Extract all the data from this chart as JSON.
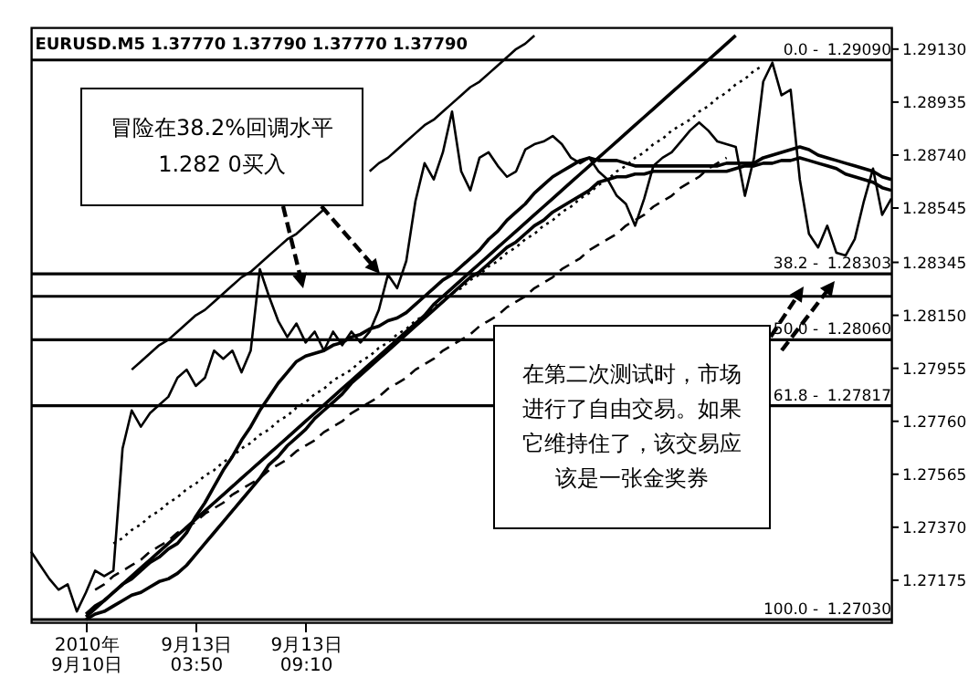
{
  "chart_data": {
    "type": "line",
    "title": "EURUSD.M5  1.37770 1.37790 1.37770 1.37790",
    "categories": [
      null,
      null,
      null,
      null,
      null,
      null,
      "2010年 9月10日",
      null,
      null,
      null,
      null,
      null,
      null,
      null,
      null,
      null,
      null,
      null,
      "9月13日 03:50",
      null,
      null,
      null,
      null,
      null,
      null,
      null,
      null,
      null,
      null,
      null,
      "9月13日 09:10",
      null,
      null,
      null,
      null,
      null,
      null,
      null,
      null,
      null,
      null,
      null,
      null,
      null,
      null,
      null,
      null,
      null,
      null,
      null,
      null,
      null,
      null,
      null,
      null,
      null,
      null,
      null,
      null,
      null,
      null,
      null,
      null,
      null,
      null,
      null,
      null,
      null,
      null,
      null,
      null,
      null,
      null,
      null,
      null,
      null,
      null,
      null,
      null,
      null,
      null,
      null,
      null,
      null,
      null,
      null,
      null,
      null,
      null,
      null,
      null,
      null,
      null,
      null,
      null
    ],
    "series": [
      {
        "color": "#000000",
        "values": [
          1.2728,
          1.2723,
          1.2718,
          1.2714,
          1.2716,
          1.2706,
          1.2713,
          1.2721,
          1.2719,
          1.2721,
          1.2766,
          1.278,
          1.2774,
          1.2779,
          1.2782,
          1.2785,
          1.2792,
          1.2795,
          1.2789,
          1.2792,
          1.2802,
          1.2799,
          1.2802,
          1.2794,
          1.2802,
          1.2832,
          1.2822,
          1.2813,
          1.2807,
          1.2812,
          1.2805,
          1.2809,
          1.2802,
          1.2809,
          1.2804,
          1.2809,
          1.2805,
          1.2809,
          1.2817,
          1.283,
          1.2825,
          1.2835,
          1.2857,
          1.2871,
          1.2865,
          1.2875,
          1.289,
          1.2868,
          1.2861,
          1.2873,
          1.2875,
          1.287,
          1.2866,
          1.2868,
          1.2876,
          1.2878,
          1.2879,
          1.2881,
          1.2878,
          1.2873,
          1.2871,
          1.2873,
          1.2868,
          1.2865,
          1.2859,
          1.2856,
          1.2848,
          1.2858,
          1.287,
          1.2873,
          1.2875,
          1.2879,
          1.2883,
          1.2886,
          1.2883,
          1.2879,
          1.2878,
          1.2877,
          1.2859,
          1.2873,
          1.2901,
          1.2908,
          1.2896,
          1.2898,
          1.2865,
          1.2845,
          1.284,
          1.2848,
          1.2838,
          1.2837,
          1.2843,
          1.2857,
          1.2869,
          1.2852,
          1.2858
        ]
      },
      {
        "color": "#000000",
        "values": [
          null,
          null,
          null,
          null,
          null,
          null,
          1.2705,
          1.2708,
          1.271,
          1.2713,
          1.2716,
          1.2718,
          1.2721,
          1.2724,
          1.2726,
          1.2729,
          1.2731,
          1.2735,
          1.2741,
          1.2746,
          1.2752,
          1.2758,
          1.2763,
          1.2769,
          1.2774,
          1.278,
          1.2785,
          1.279,
          1.2794,
          1.2798,
          1.28,
          1.2801,
          1.2802,
          1.2804,
          1.2805,
          1.2807,
          1.2808,
          1.281,
          1.2811,
          1.2813,
          1.2814,
          1.2816,
          1.2819,
          1.2822,
          1.2825,
          1.2828,
          1.283,
          1.2833,
          1.2836,
          1.2839,
          1.2843,
          1.2846,
          1.285,
          1.2853,
          1.2856,
          1.286,
          1.2863,
          1.2866,
          1.2868,
          1.287,
          1.2872,
          1.2873,
          1.2872,
          1.2872,
          1.2872,
          1.2871,
          1.287,
          1.287,
          1.287,
          1.287,
          1.287,
          1.287,
          1.287,
          1.287,
          1.287,
          1.287,
          1.2871,
          1.2871,
          1.2871,
          1.2871,
          1.2873,
          1.2874,
          1.2875,
          1.2876,
          1.2877,
          1.2876,
          1.2874,
          1.2873,
          1.2872,
          1.2871,
          1.287,
          1.2869,
          1.2868,
          1.2866,
          1.2865
        ]
      },
      {
        "color": "#000000",
        "values": [
          null,
          null,
          null,
          null,
          null,
          null,
          1.2703,
          1.2705,
          1.2706,
          1.2708,
          1.271,
          1.2712,
          1.2713,
          1.2715,
          1.2717,
          1.2718,
          1.272,
          1.2723,
          1.2727,
          1.2731,
          1.2735,
          1.2739,
          1.2743,
          1.2747,
          1.2751,
          1.2755,
          1.276,
          1.2763,
          1.2767,
          1.277,
          1.2773,
          1.2777,
          1.278,
          1.2783,
          1.2786,
          1.279,
          1.2793,
          1.2796,
          1.2799,
          1.2802,
          1.2805,
          1.2808,
          1.2811,
          1.2814,
          1.2817,
          1.282,
          1.2823,
          1.2826,
          1.2829,
          1.2831,
          1.2834,
          1.2837,
          1.284,
          1.2842,
          1.2845,
          1.2848,
          1.285,
          1.2853,
          1.2855,
          1.2857,
          1.2859,
          1.2861,
          1.2864,
          1.2865,
          1.2866,
          1.2866,
          1.2867,
          1.2867,
          1.2868,
          1.2868,
          1.2868,
          1.2868,
          1.2868,
          1.2868,
          1.2868,
          1.2868,
          1.2868,
          1.2869,
          1.287,
          1.287,
          1.2871,
          1.2871,
          1.2872,
          1.2872,
          1.2873,
          1.2872,
          1.2871,
          1.287,
          1.2869,
          1.2867,
          1.2866,
          1.2865,
          1.2864,
          1.2862,
          1.2861
        ]
      },
      {
        "color": "#000000",
        "values": [
          null,
          null,
          null,
          null,
          null,
          null,
          1.2704,
          1.2707,
          1.271,
          1.2713,
          1.2716,
          1.2719,
          1.2722,
          1.2725,
          1.2728,
          1.2731,
          1.2734,
          1.2737,
          1.274,
          1.2743,
          1.2746,
          1.2749,
          1.2752,
          1.2755,
          1.2758,
          1.2761,
          1.2764,
          1.2767,
          1.277,
          1.2773,
          1.2776,
          1.2779,
          1.2782,
          1.2785,
          1.2788,
          1.2791,
          1.2794,
          1.2797,
          1.28,
          1.2803,
          1.2806,
          1.2809,
          1.2812,
          1.2815,
          1.2819,
          1.2822,
          1.2825,
          1.2828,
          1.2831,
          1.2834,
          1.2837,
          1.284,
          1.2843,
          1.2846,
          1.2849,
          1.2852,
          1.2855,
          1.2858,
          1.2861,
          1.2864,
          1.2867,
          1.287,
          1.2873,
          1.2876,
          1.2879,
          1.2882,
          1.2885,
          1.2888,
          1.2891,
          1.2894,
          1.2897,
          1.29,
          1.2903,
          1.2906,
          1.2909,
          1.2912,
          1.2915,
          1.2918,
          null,
          null,
          null,
          null,
          null,
          null,
          null,
          null,
          null,
          null,
          null,
          null,
          null,
          null,
          null,
          null,
          null
        ]
      },
      {
        "color": "#000000",
        "values": [
          null,
          null,
          null,
          null,
          null,
          null,
          null,
          null,
          null,
          null,
          null,
          1.2795,
          1.2798,
          1.2801,
          1.2804,
          1.2806,
          1.2809,
          1.2812,
          1.2815,
          1.2817,
          1.282,
          1.2823,
          1.2826,
          1.2829,
          1.2831,
          1.2834,
          1.2837,
          1.284,
          1.2843,
          1.2845,
          1.2848,
          1.2851,
          1.2854,
          null,
          null,
          null,
          null,
          1.2868,
          1.2871,
          1.2873,
          1.2876,
          1.2879,
          1.2882,
          1.2885,
          1.2887,
          1.289,
          1.2893,
          1.2896,
          1.2899,
          1.2901,
          1.2904,
          1.2907,
          1.291,
          1.2913,
          1.2915,
          1.2918,
          null,
          null,
          null,
          null,
          null,
          null,
          null,
          null,
          null,
          null,
          null,
          null,
          null,
          null,
          null,
          null,
          null,
          null,
          null,
          null,
          null,
          null,
          null,
          null,
          null,
          null,
          null,
          null,
          null,
          null,
          null,
          null,
          null,
          null,
          null,
          null,
          null,
          null,
          null
        ]
      },
      {
        "color": "#000000",
        "line_style": "dotted",
        "values": [
          null,
          null,
          null,
          null,
          null,
          null,
          null,
          null,
          null,
          1.2731,
          1.2733,
          1.2736,
          1.2738,
          1.2741,
          1.2743,
          1.2746,
          1.2748,
          1.2751,
          1.2753,
          1.2756,
          1.2758,
          1.2761,
          1.2763,
          1.2766,
          1.2768,
          1.2771,
          1.2773,
          1.2776,
          1.2778,
          1.2781,
          1.2783,
          1.2786,
          1.2788,
          1.2791,
          1.2793,
          1.2795,
          1.2798,
          1.28,
          1.2803,
          1.2805,
          1.2808,
          1.281,
          1.2813,
          1.2815,
          1.2818,
          1.282,
          1.2823,
          1.2825,
          1.2828,
          1.283,
          1.2833,
          1.2835,
          1.2838,
          1.284,
          1.2843,
          1.2845,
          1.2848,
          1.285,
          1.2853,
          1.2855,
          1.2858,
          1.286,
          1.2863,
          1.2865,
          1.2868,
          1.287,
          1.2873,
          1.2875,
          1.2878,
          1.288,
          1.2883,
          1.2885,
          1.2887,
          1.289,
          1.2892,
          1.2895,
          1.2897,
          1.29,
          1.2902,
          1.2905,
          1.2907,
          null,
          null,
          null,
          null,
          null,
          null,
          null,
          null,
          null,
          null,
          null,
          null,
          null,
          null
        ]
      },
      {
        "color": "#000000",
        "line_style": "dashed",
        "values": [
          null,
          null,
          null,
          null,
          null,
          null,
          null,
          1.2714,
          1.2716,
          1.2719,
          1.2721,
          1.2723,
          1.2725,
          1.2728,
          1.273,
          1.2732,
          1.2735,
          1.2737,
          1.2739,
          1.2742,
          1.2744,
          1.2746,
          1.2749,
          1.2751,
          1.2753,
          1.2755,
          1.2758,
          1.276,
          1.2762,
          1.2765,
          1.2767,
          1.2769,
          1.2772,
          1.2774,
          1.2776,
          1.2779,
          1.2781,
          1.2783,
          1.2785,
          1.2788,
          1.279,
          1.2792,
          1.2795,
          1.2797,
          1.2799,
          1.2802,
          1.2804,
          1.2806,
          1.2808,
          1.2811,
          1.2813,
          1.2815,
          1.2818,
          1.282,
          1.2822,
          1.2825,
          1.2827,
          1.2829,
          1.2832,
          1.2834,
          1.2836,
          1.2839,
          1.2841,
          1.2843,
          1.2845,
          1.2848,
          1.285,
          1.2852,
          1.2855,
          1.2857,
          1.2859,
          1.2862,
          1.2864,
          1.2866,
          1.2869,
          1.2871,
          1.2873,
          null,
          null,
          null,
          null,
          null,
          null,
          null,
          null,
          null,
          null,
          null,
          null,
          null,
          null,
          null,
          null,
          null,
          null
        ]
      }
    ],
    "ylim": [
      1.2702,
      1.2921
    ],
    "yticks": [
      {
        "value": 1.2913,
        "label": "1.29130"
      },
      {
        "value": 1.28935,
        "label": "1.28935"
      },
      {
        "value": 1.2874,
        "label": "1.28740"
      },
      {
        "value": 1.28545,
        "label": "1.28545"
      },
      {
        "value": 1.28345,
        "label": "1.28345"
      },
      {
        "value": 1.2815,
        "label": "1.28150"
      },
      {
        "value": 1.27955,
        "label": "1.27955"
      },
      {
        "value": 1.2776,
        "label": "1.27760"
      },
      {
        "value": 1.27565,
        "label": "1.27565"
      },
      {
        "value": 1.2737,
        "label": "1.27370"
      },
      {
        "value": 1.27175,
        "label": "1.27175"
      }
    ],
    "ref_lines": [
      {
        "axis": "y",
        "value": 1.2909,
        "label": "1.29090"
      },
      {
        "axis": "y",
        "value": 1.28303,
        "label": "1.28303"
      },
      {
        "axis": "y",
        "value": 1.2822
      },
      {
        "axis": "y",
        "value": 1.2806,
        "label": "1.28060"
      },
      {
        "axis": "y",
        "value": 1.27817,
        "label": "1.27817"
      },
      {
        "axis": "y",
        "value": 1.2703,
        "label": "1.27030"
      }
    ],
    "annotations": [
      "冒险在38.2%回调水平1.282 0买入",
      "在第二次测试时，市场进行了自由交易。如果它维持住了，该交易应该是一张金奖券",
      {
        "text": "0.0 -",
        "y": 1.2909
      },
      {
        "text": "38.2 -",
        "y": 1.28303
      },
      {
        "text": "50.0 -",
        "y": 1.2806
      },
      {
        "text": "61.8 -",
        "y": 1.27817
      },
      {
        "text": "100.0 -",
        "y": 1.2703
      }
    ]
  }
}
